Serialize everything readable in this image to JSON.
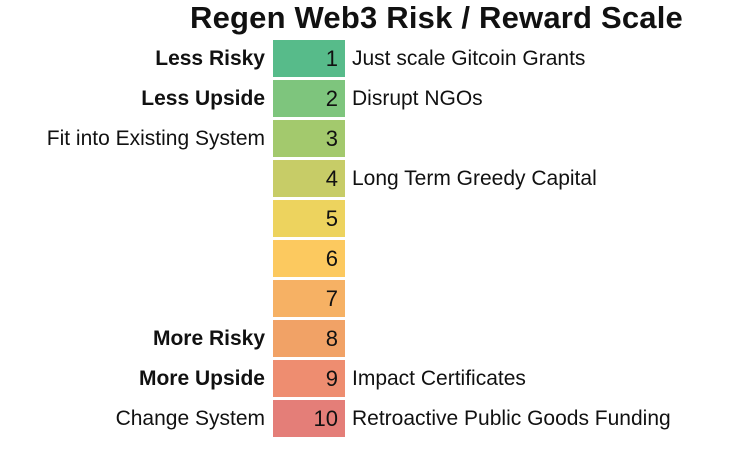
{
  "title": "Regen Web3 Risk / Reward Scale",
  "chart_data": {
    "type": "table",
    "title": "Regen Web3 Risk / Reward Scale",
    "scale_range": [
      1,
      10
    ],
    "legend_position": "none",
    "description_axes": {
      "left_column": "risk/upside/system descriptors",
      "middle_column": "scale value 1-10 on green-to-red gradient",
      "right_column": "example funding mechanisms"
    },
    "rows": [
      {
        "value": 1,
        "left_label": "Less Risky",
        "left_bold": true,
        "right_label": "Just scale Gitcoin Grants",
        "color": "#57bb8a"
      },
      {
        "value": 2,
        "left_label": "Less Upside",
        "left_bold": true,
        "right_label": "Disrupt NGOs",
        "color": "#7ec57d"
      },
      {
        "value": 3,
        "left_label": "Fit into Existing System",
        "left_bold": false,
        "right_label": "",
        "color": "#a3c96d"
      },
      {
        "value": 4,
        "left_label": "",
        "left_bold": false,
        "right_label": "Long Term Greedy Capital",
        "color": "#c7cc67"
      },
      {
        "value": 5,
        "left_label": "",
        "left_bold": false,
        "right_label": "",
        "color": "#edd35e"
      },
      {
        "value": 6,
        "left_label": "",
        "left_bold": false,
        "right_label": "",
        "color": "#fcc95f"
      },
      {
        "value": 7,
        "left_label": "",
        "left_bold": false,
        "right_label": "",
        "color": "#f6b164"
      },
      {
        "value": 8,
        "left_label": "More Risky",
        "left_bold": true,
        "right_label": "",
        "color": "#f1a266"
      },
      {
        "value": 9,
        "left_label": "More Upside",
        "left_bold": true,
        "right_label": "Impact Certificates",
        "color": "#ee8d70"
      },
      {
        "value": 10,
        "left_label": "Change System",
        "left_bold": false,
        "right_label": "Retroactive Public Goods Funding",
        "color": "#e47e78"
      }
    ]
  }
}
